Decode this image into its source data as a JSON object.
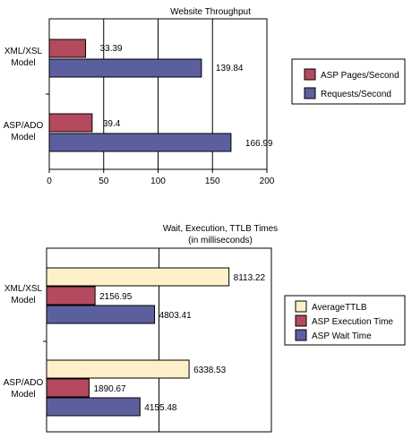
{
  "colors": {
    "asp_pages": "#b54a5e",
    "requests": "#5c5f9e",
    "ttlb": "#fdf0c9",
    "exec": "#b54a5e",
    "wait": "#5c5f9e",
    "stroke": "#000000"
  },
  "chart_data": [
    {
      "type": "bar",
      "orientation": "horizontal",
      "title": "Website Throughput",
      "categories": [
        "XML/XSL Model",
        "ASP/ADO Model"
      ],
      "category_lines": [
        [
          "XML/XSL",
          "Model"
        ],
        [
          "ASP/ADO",
          "Model"
        ]
      ],
      "series": [
        {
          "name": "ASP Pages/Second",
          "values": [
            33.39,
            39.4
          ],
          "labels": [
            "33.39",
            "39.4"
          ]
        },
        {
          "name": "Requests/Second",
          "values": [
            139.84,
            166.99
          ],
          "labels": [
            "139.84",
            "166.99"
          ]
        }
      ],
      "xlim": [
        0,
        200
      ],
      "xticks": [
        0,
        50,
        100,
        150,
        200
      ],
      "grid": true,
      "legend": "right"
    },
    {
      "type": "bar",
      "orientation": "horizontal",
      "title": "Wait, Execution, TTLB Times",
      "subtitle": "(in milliseconds)",
      "categories": [
        "XML/XSL Model",
        "ASP/ADO Model"
      ],
      "category_lines": [
        [
          "XML/XSL",
          "Model"
        ],
        [
          "ASP/ADO",
          "Model"
        ]
      ],
      "series": [
        {
          "name": "AverageTTLB",
          "values": [
            8113.22,
            6338.53
          ],
          "labels": [
            "8113.22",
            "6338.53"
          ]
        },
        {
          "name": "ASP Execution Time",
          "values": [
            2156.95,
            1890.67
          ],
          "labels": [
            "2156.95",
            "1890.67"
          ]
        },
        {
          "name": "ASP Wait Time",
          "values": [
            4803.41,
            4155.48
          ],
          "labels": [
            "4803.41",
            "4155.48"
          ]
        }
      ],
      "xlim": [
        0,
        10000
      ],
      "grid": true,
      "legend": "right"
    }
  ]
}
